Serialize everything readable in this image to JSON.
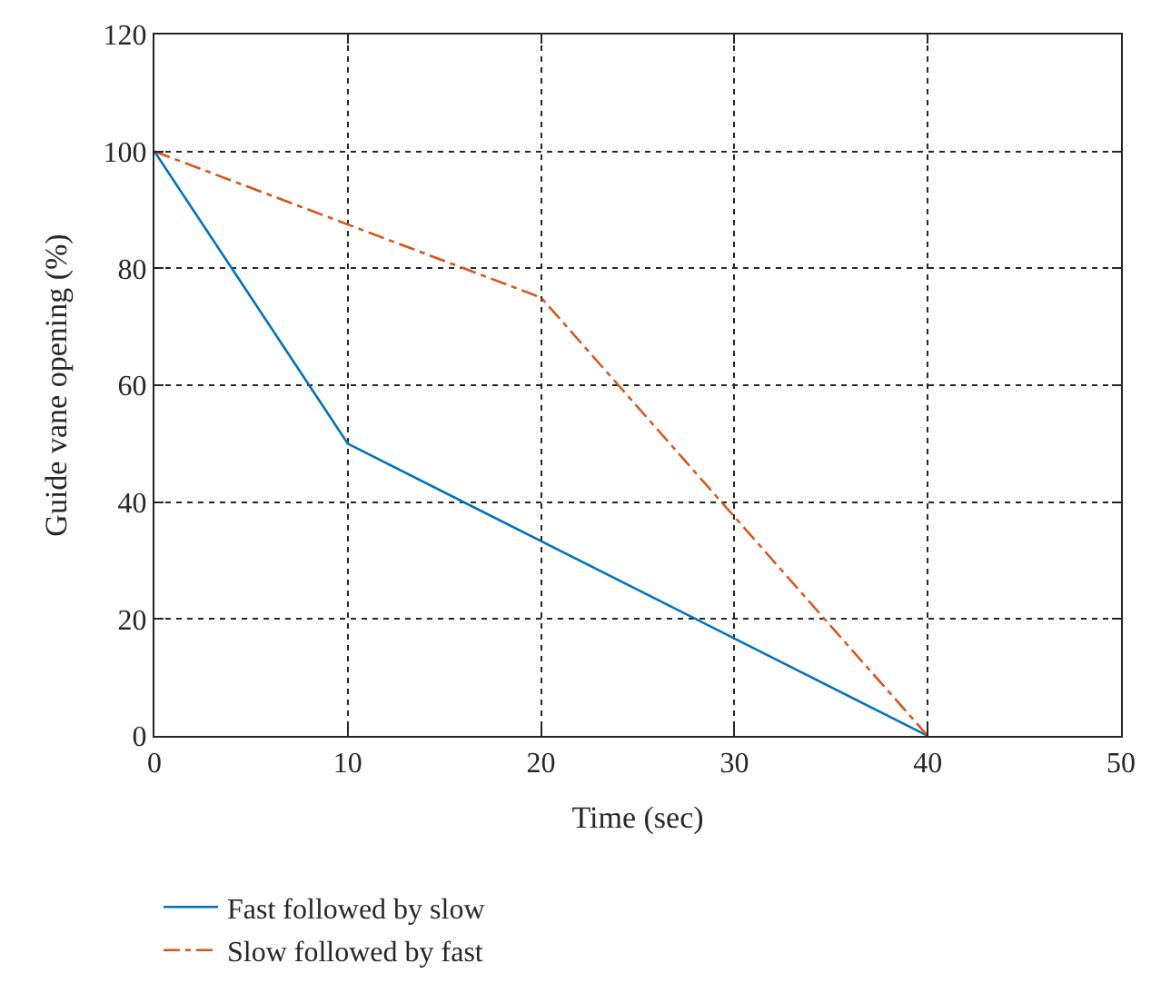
{
  "chart_data": {
    "type": "line",
    "xlabel": "Time (sec)",
    "ylabel": "Guide vane opening (%)",
    "xlim": [
      0,
      50
    ],
    "xticks": [
      0,
      10,
      20,
      30,
      40,
      50
    ],
    "ylim": [
      0,
      120
    ],
    "yticks": [
      0,
      20,
      40,
      60,
      80,
      100,
      120
    ],
    "grid": true,
    "legend": "bottom",
    "marker": "none",
    "series": [
      {
        "name": "Fast followed by slow",
        "color": "#0072bd",
        "line_style": "solid",
        "x": [
          0,
          10,
          40
        ],
        "values": [
          100,
          50,
          0
        ]
      },
      {
        "name": "Slow followed by fast",
        "color": "#d95319",
        "line_style": "dashdot",
        "x": [
          0,
          20,
          40
        ],
        "values": [
          100,
          75,
          0
        ]
      }
    ]
  }
}
